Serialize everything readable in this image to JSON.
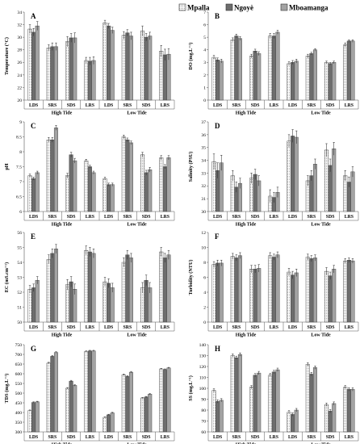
{
  "legend": {
    "items": [
      {
        "name": "Mpalla",
        "color": "#ffffff",
        "pattern": "dots"
      },
      {
        "name": "Ngoyè",
        "color": "#6d6d6d",
        "pattern": "solid"
      },
      {
        "name": "Mboamanga",
        "color": "#a3a3a3",
        "pattern": "solid"
      }
    ]
  },
  "chart_data": [
    {
      "type": "bar",
      "letter": "A",
      "ylabel": "Temperature (°C)",
      "ylim": [
        20,
        34
      ],
      "yticks": [
        20,
        22,
        24,
        26,
        28,
        30,
        32,
        34
      ],
      "categories": [
        "LDS",
        "SRS",
        "SDS",
        "LRS",
        "LDS",
        "SRS",
        "SDS",
        "LRS"
      ],
      "groups": [
        {
          "label": "High Tide",
          "span": [
            0,
            3
          ]
        },
        {
          "label": "Low Tide",
          "span": [
            4,
            7
          ]
        }
      ],
      "series": [
        {
          "name": "Mpalla",
          "values": [
            31.3,
            28.3,
            29.3,
            26.3,
            32.3,
            30.3,
            31.0,
            27.8
          ],
          "errors": [
            0.7,
            0.5,
            0.8,
            0.5,
            0.4,
            0.6,
            0.8,
            0.9
          ]
        },
        {
          "name": "Ngoyè",
          "values": [
            30.8,
            28.5,
            29.9,
            26.2,
            31.8,
            30.7,
            30.0,
            27.2
          ],
          "errors": [
            0.6,
            0.6,
            0.7,
            0.6,
            0.4,
            0.5,
            0.6,
            0.9
          ]
        },
        {
          "name": "Mboamanga",
          "values": [
            31.8,
            28.5,
            29.9,
            26.3,
            31.1,
            30.2,
            30.2,
            27.3
          ],
          "errors": [
            0.7,
            0.6,
            0.8,
            0.6,
            0.5,
            0.6,
            0.6,
            0.9
          ]
        }
      ]
    },
    {
      "type": "bar",
      "letter": "B",
      "ylabel": "DO (mg.L⁻¹)",
      "ylim": [
        0,
        7
      ],
      "yticks": [
        0,
        1,
        2,
        3,
        4,
        5,
        6,
        7
      ],
      "categories": [
        "LDS",
        "SRS",
        "SDS",
        "LRS",
        "LDS",
        "SRS",
        "SDS",
        "LRS"
      ],
      "groups": [
        {
          "label": "High Tide",
          "span": [
            0,
            3
          ]
        },
        {
          "label": "Low Tide",
          "span": [
            4,
            7
          ]
        }
      ],
      "series": [
        {
          "name": "Mpalla",
          "values": [
            3.4,
            4.8,
            3.5,
            5.1,
            2.9,
            3.5,
            3.0,
            4.4
          ],
          "errors": [
            0.15,
            0.15,
            0.15,
            0.2,
            0.15,
            0.15,
            0.1,
            0.15
          ]
        },
        {
          "name": "Ngoyè",
          "values": [
            3.2,
            5.1,
            3.9,
            5.1,
            3.0,
            3.7,
            2.9,
            4.7
          ],
          "errors": [
            0.15,
            0.15,
            0.15,
            0.2,
            0.15,
            0.1,
            0.1,
            0.1
          ]
        },
        {
          "name": "Mboamanga",
          "values": [
            3.1,
            4.9,
            3.7,
            5.4,
            3.1,
            4.0,
            3.0,
            4.7
          ],
          "errors": [
            0.15,
            0.15,
            0.15,
            0.15,
            0.15,
            0.1,
            0.1,
            0.1
          ]
        }
      ]
    },
    {
      "type": "bar",
      "letter": "C",
      "ylabel": "pH",
      "ylim": [
        6,
        9
      ],
      "yticks": [
        6,
        6.5,
        7,
        7.5,
        8,
        8.5,
        9
      ],
      "categories": [
        "LDS",
        "SRS",
        "SDS",
        "LRS",
        "LDS",
        "SRS",
        "SDS",
        "LRS"
      ],
      "groups": [
        {
          "label": "High Tide",
          "span": [
            0,
            3
          ]
        },
        {
          "label": "Low Tide",
          "span": [
            4,
            7
          ]
        }
      ],
      "series": [
        {
          "name": "Mpalla",
          "values": [
            7.2,
            8.4,
            7.2,
            7.7,
            7.1,
            8.5,
            7.9,
            7.8
          ],
          "errors": [
            0.05,
            0.08,
            0.08,
            0.05,
            0.05,
            0.06,
            0.08,
            0.07
          ]
        },
        {
          "name": "Ngoyè",
          "values": [
            7.1,
            8.4,
            7.9,
            7.5,
            6.9,
            8.4,
            7.3,
            7.5
          ],
          "errors": [
            0.05,
            0.08,
            0.08,
            0.05,
            0.05,
            0.06,
            0.08,
            0.07
          ]
        },
        {
          "name": "Mboamanga",
          "values": [
            7.3,
            8.8,
            7.7,
            7.3,
            6.9,
            8.3,
            7.4,
            7.8
          ],
          "errors": [
            0.05,
            0.08,
            0.08,
            0.05,
            0.05,
            0.06,
            0.08,
            0.07
          ]
        }
      ]
    },
    {
      "type": "bar",
      "letter": "D",
      "ylabel": "Salinity (PSU)",
      "ylim": [
        30,
        37
      ],
      "yticks": [
        30,
        31,
        32,
        33,
        34,
        35,
        36,
        37
      ],
      "categories": [
        "LDS",
        "SRS",
        "SDS",
        "LRS",
        "LDS",
        "SRS",
        "SDS",
        "LRS"
      ],
      "groups": [
        {
          "label": "High Tide",
          "span": [
            0,
            3
          ]
        },
        {
          "label": "Low Tide",
          "span": [
            4,
            7
          ]
        }
      ],
      "series": [
        {
          "name": "Mpalla",
          "values": [
            33.9,
            32.8,
            32.6,
            31.2,
            35.5,
            32.4,
            34.8,
            32.8
          ],
          "errors": [
            0.6,
            0.4,
            0.4,
            0.5,
            0.5,
            0.4,
            0.5,
            0.4
          ]
        },
        {
          "name": "Ngoyè",
          "values": [
            33.2,
            31.9,
            32.9,
            31.1,
            35.9,
            32.8,
            33.6,
            32.3
          ],
          "errors": [
            0.6,
            0.4,
            0.4,
            0.4,
            0.5,
            0.4,
            0.5,
            0.4
          ]
        },
        {
          "name": "Mboamanga",
          "values": [
            33.8,
            32.2,
            32.4,
            31.5,
            35.8,
            33.7,
            34.9,
            33.1
          ],
          "errors": [
            0.6,
            0.4,
            0.4,
            0.4,
            0.5,
            0.4,
            0.5,
            0.4
          ]
        }
      ]
    },
    {
      "type": "bar",
      "letter": "E",
      "ylabel": "EC (mS.cm⁻¹)",
      "ylim": [
        50,
        56
      ],
      "yticks": [
        50,
        51,
        52,
        53,
        54,
        55,
        56
      ],
      "categories": [
        "LDS",
        "SRS",
        "SDS",
        "LRS",
        "LDS",
        "SRS",
        "SDS",
        "LRS"
      ],
      "groups": [
        {
          "label": "High Tide",
          "span": [
            0,
            3
          ]
        },
        {
          "label": "Low Tide",
          "span": [
            4,
            7
          ]
        }
      ],
      "series": [
        {
          "name": "Mpalla",
          "values": [
            52.2,
            54.2,
            52.5,
            54.8,
            52.7,
            54.0,
            52.3,
            54.7
          ],
          "errors": [
            0.25,
            0.3,
            0.35,
            0.3,
            0.3,
            0.3,
            0.35,
            0.3
          ]
        },
        {
          "name": "Ngoyè",
          "values": [
            52.3,
            54.6,
            52.7,
            54.7,
            52.6,
            54.5,
            52.8,
            54.3
          ],
          "errors": [
            0.25,
            0.3,
            0.35,
            0.3,
            0.3,
            0.3,
            0.35,
            0.3
          ]
        },
        {
          "name": "Mboamanga",
          "values": [
            52.8,
            54.9,
            52.2,
            54.6,
            52.3,
            54.3,
            52.3,
            54.5
          ],
          "errors": [
            0.25,
            0.3,
            0.35,
            0.3,
            0.3,
            0.3,
            0.35,
            0.3
          ]
        }
      ]
    },
    {
      "type": "bar",
      "letter": "F",
      "ylabel": "Turbidity (NTU)",
      "ylim": [
        0,
        12
      ],
      "yticks": [
        0,
        2,
        4,
        6,
        8,
        10,
        12
      ],
      "categories": [
        "LDS",
        "SRS",
        "SDS",
        "LRS",
        "LDS",
        "SRS",
        "SDS",
        "LRS"
      ],
      "groups": [
        {
          "label": "High Tide",
          "span": [
            0,
            3
          ]
        },
        {
          "label": "Low Tide",
          "span": [
            4,
            7
          ]
        }
      ],
      "series": [
        {
          "name": "Mpalla",
          "values": [
            7.7,
            8.8,
            7.1,
            8.9,
            6.7,
            8.7,
            6.8,
            8.2
          ],
          "errors": [
            0.4,
            0.4,
            0.5,
            0.4,
            0.5,
            0.4,
            0.5,
            0.3
          ]
        },
        {
          "name": "Ngoyè",
          "values": [
            7.9,
            8.6,
            7.1,
            8.7,
            6.3,
            8.5,
            6.2,
            8.3
          ],
          "errors": [
            0.4,
            0.4,
            0.5,
            0.4,
            0.5,
            0.4,
            0.5,
            0.3
          ]
        },
        {
          "name": "Mboamanga",
          "values": [
            7.9,
            8.9,
            7.2,
            9.0,
            6.6,
            8.6,
            7.1,
            8.2
          ],
          "errors": [
            0.4,
            0.4,
            0.5,
            0.4,
            0.5,
            0.4,
            0.5,
            0.3
          ]
        }
      ]
    },
    {
      "type": "bar",
      "letter": "G",
      "ylabel": "TDS (mg.L⁻¹)",
      "ylim": [
        300,
        750
      ],
      "yticks": [
        300,
        350,
        400,
        450,
        500,
        550,
        600,
        650,
        700,
        750
      ],
      "categories": [
        "LDS",
        "SRS",
        "SDS",
        "LRS",
        "LDS",
        "SRS",
        "SDS",
        "LRS"
      ],
      "groups": [
        {
          "label": "High Tide",
          "span": [
            0,
            3
          ]
        },
        {
          "label": "Low Tide",
          "span": [
            4,
            7
          ]
        }
      ],
      "series": [
        {
          "name": "Mpalla",
          "values": [
            410,
            655,
            525,
            715,
            375,
            595,
            475,
            625
          ],
          "errors": [
            3,
            4,
            4,
            3,
            3,
            4,
            3,
            3
          ]
        },
        {
          "name": "Ngoyè",
          "values": [
            452,
            690,
            562,
            718,
            388,
            586,
            480,
            622
          ],
          "errors": [
            3,
            4,
            4,
            3,
            3,
            4,
            3,
            3
          ]
        },
        {
          "name": "Mboamanga",
          "values": [
            455,
            710,
            540,
            718,
            398,
            608,
            495,
            630
          ],
          "errors": [
            3,
            4,
            4,
            3,
            3,
            4,
            3,
            3
          ]
        }
      ]
    },
    {
      "type": "bar",
      "letter": "H",
      "ylabel": "SS (mg.L⁻¹)",
      "ylim": [
        60,
        140
      ],
      "yticks": [
        60,
        70,
        80,
        90,
        100,
        110,
        120,
        130,
        140
      ],
      "categories": [
        "LDS",
        "SRS",
        "SDS",
        "LRS",
        "LDS",
        "SRS",
        "SDS",
        "LRS"
      ],
      "groups": [
        {
          "label": "High Tide",
          "span": [
            0,
            3
          ]
        },
        {
          "label": "Low Tide",
          "span": [
            4,
            7
          ]
        }
      ],
      "series": [
        {
          "name": "Mpalla",
          "values": [
            98,
            130,
            101,
            112,
            78,
            122,
            85,
            101
          ],
          "errors": [
            1.5,
            1.5,
            1.5,
            1.5,
            1.5,
            1.5,
            1.5,
            1.5
          ]
        },
        {
          "name": "Ngoyè",
          "values": [
            88,
            128,
            112,
            115,
            76,
            113,
            79,
            99
          ],
          "errors": [
            1.5,
            1.5,
            1.5,
            1.5,
            1.5,
            1.5,
            1.5,
            1.5
          ]
        },
        {
          "name": "Mboamanga",
          "values": [
            89,
            131,
            114,
            117,
            80,
            119,
            86,
            99
          ],
          "errors": [
            1.5,
            1.5,
            1.5,
            1.5,
            1.5,
            1.5,
            1.5,
            1.5
          ]
        }
      ]
    }
  ]
}
